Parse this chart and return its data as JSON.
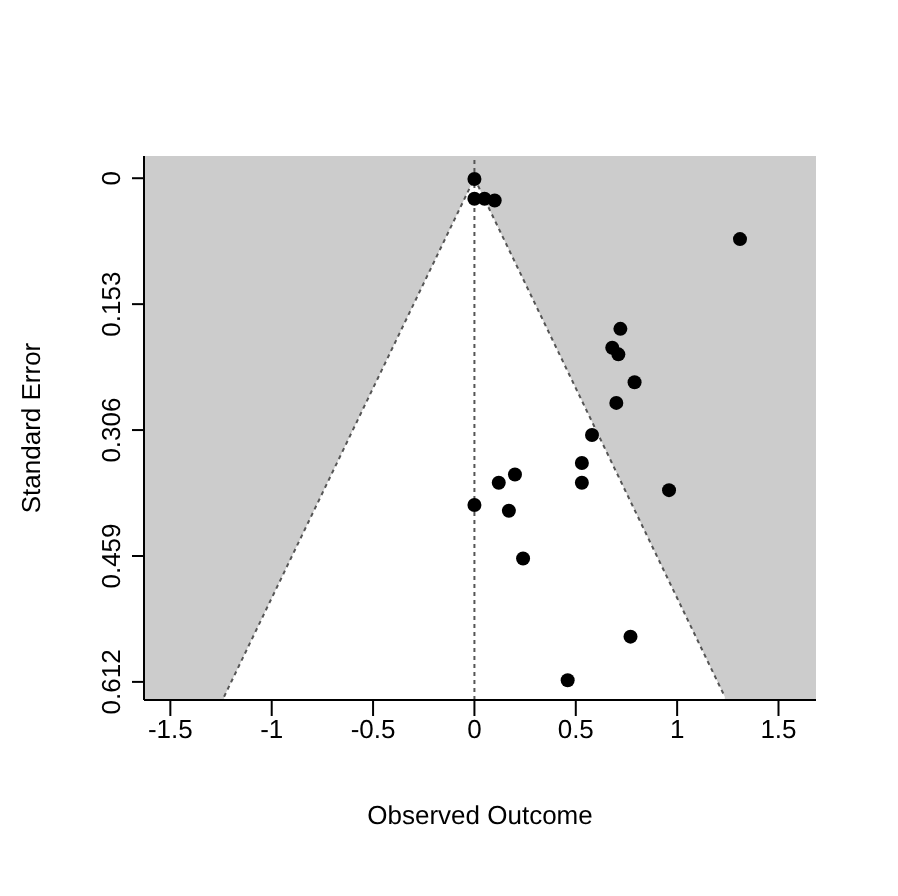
{
  "chart_data": {
    "type": "scatter",
    "xlabel": "Observed Outcome",
    "ylabel": "Standard Error",
    "xlim": [
      -1.63,
      1.685
    ],
    "xticks": [
      -1.5,
      -1,
      -0.5,
      0,
      0.5,
      1,
      1.5
    ],
    "ylim": [
      0.634,
      -0.027
    ],
    "yticks": [
      0,
      0.153,
      0.306,
      0.459,
      0.612
    ],
    "legend": false,
    "ref_lines": [
      {
        "axis": "x",
        "value": 0,
        "line_style": "dotted",
        "color": "#555555"
      }
    ],
    "series": [
      {
        "type": "area",
        "color": "#ffffff",
        "line_style": "dotted",
        "x": [
          -1.235,
          0,
          1.235
        ],
        "values": [
          0.63,
          0,
          0.63
        ]
      },
      {
        "marker": "circle",
        "color": "#000000",
        "x": [
          0.0,
          0.0,
          0.05,
          0.1,
          1.31,
          0.72,
          0.68,
          0.71,
          0.79,
          0.7,
          0.58,
          0.53,
          0.53,
          0.2,
          0.12,
          0.0,
          0.17,
          0.96,
          0.24,
          0.77,
          0.46
        ],
        "values": [
          0.001,
          0.025,
          0.025,
          0.027,
          0.074,
          0.183,
          0.206,
          0.214,
          0.248,
          0.273,
          0.312,
          0.346,
          0.37,
          0.36,
          0.37,
          0.397,
          0.404,
          0.379,
          0.462,
          0.557,
          0.61
        ]
      }
    ]
  }
}
